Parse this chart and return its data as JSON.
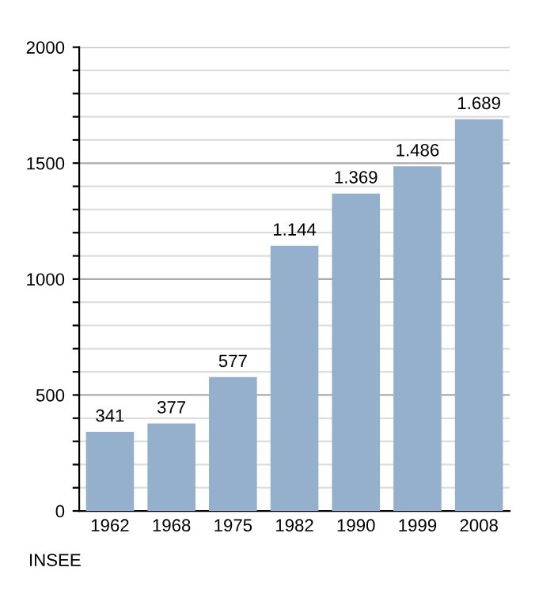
{
  "chart_data": {
    "type": "bar",
    "categories": [
      "1962",
      "1968",
      "1975",
      "1982",
      "1990",
      "1999",
      "2008"
    ],
    "values": [
      341,
      377,
      577,
      1144,
      1369,
      1486,
      1689
    ],
    "value_labels": [
      "341",
      "377",
      "577",
      "1.144",
      "1.369",
      "1.486",
      "1.689"
    ],
    "color": "#94b0cc",
    "ylim": [
      0,
      2000
    ],
    "yticks": [
      0,
      {
        "value": 100,
        "label": null
      },
      {
        "value": 200,
        "label": null
      },
      {
        "value": 300,
        "label": null
      },
      {
        "value": 400,
        "label": null
      },
      500,
      {
        "value": 600,
        "label": null
      },
      {
        "value": 700,
        "label": null
      },
      {
        "value": 800,
        "label": null
      },
      {
        "value": 900,
        "label": null
      },
      1000,
      {
        "value": 1100,
        "label": null
      },
      {
        "value": 1200,
        "label": null
      },
      {
        "value": 1300,
        "label": null
      },
      {
        "value": 1400,
        "label": null
      },
      1500,
      {
        "value": 1600,
        "label": null
      },
      {
        "value": 1700,
        "label": null
      },
      {
        "value": 1800,
        "label": null
      },
      {
        "value": 1900,
        "label": null
      },
      2000
    ],
    "grid": "y",
    "annotations": [
      "INSEE"
    ]
  }
}
